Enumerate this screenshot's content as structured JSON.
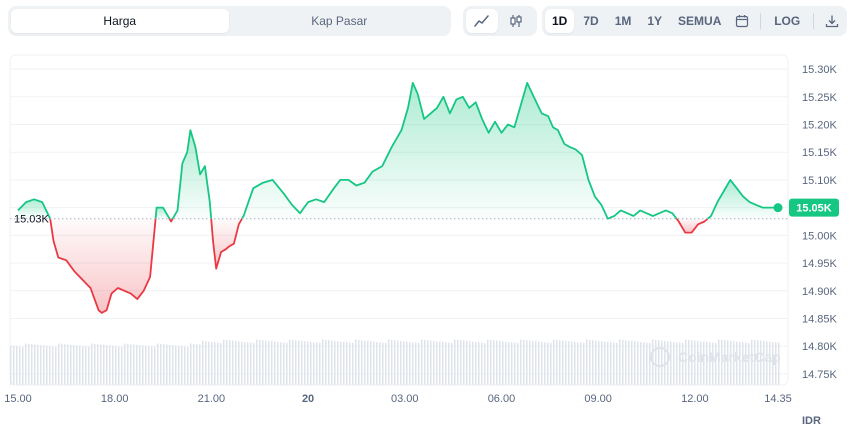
{
  "toolbar": {
    "tabs": [
      {
        "label": "Harga",
        "active": true
      },
      {
        "label": "Kap Pasar",
        "active": false
      }
    ],
    "chart_type_icons": [
      "line-chart-icon",
      "candlestick-icon"
    ],
    "ranges": [
      "1D",
      "7D",
      "1M",
      "1Y",
      "SEMUA"
    ],
    "active_range": "1D",
    "calendar_icon": "calendar-icon",
    "log_label": "LOG",
    "download_icon": "download-icon"
  },
  "colors": {
    "up": "#16c784",
    "down": "#ea3943",
    "grid": "#eff2f5",
    "axis_text": "#58667e"
  },
  "watermark": "CoinMarketCap",
  "chart_data": {
    "type": "line",
    "title": "",
    "ylabel": "",
    "currency_label": "IDR",
    "y_ticks": [
      "15.30K",
      "15.25K",
      "15.20K",
      "15.15K",
      "15.10K",
      "15.05K",
      "15.00K",
      "14.95K",
      "14.90K",
      "14.85K",
      "14.80K",
      "14.75K"
    ],
    "y_tick_values": [
      15300,
      15250,
      15200,
      15150,
      15100,
      15050,
      15000,
      14950,
      14900,
      14850,
      14800,
      14750
    ],
    "ylim": [
      14730,
      15320
    ],
    "x_ticks": [
      "15.00",
      "18.00",
      "21.00",
      "20",
      "03.00",
      "06.00",
      "09.00",
      "12.00",
      "14.35"
    ],
    "x_tick_hours": [
      0,
      3,
      6,
      9,
      12,
      15,
      18,
      21,
      23.58
    ],
    "xlim": [
      0,
      23.58
    ],
    "reference": {
      "value": 15030,
      "label": "15.03K"
    },
    "current": {
      "value": 15050,
      "label": "15.05K"
    },
    "series": [
      {
        "x": [
          0,
          0.25,
          0.5,
          0.75,
          1.0,
          1.1,
          1.25,
          1.5,
          1.75,
          2.0,
          2.25,
          2.5,
          2.6,
          2.75,
          2.9,
          3.1,
          3.3,
          3.5,
          3.7,
          3.9,
          4.1,
          4.3,
          4.5,
          4.75,
          4.95,
          5.1,
          5.25,
          5.35,
          5.5,
          5.65,
          5.8,
          5.95,
          6.05,
          6.15,
          6.3,
          6.45,
          6.55,
          6.7,
          6.85,
          7.0,
          7.15,
          7.3,
          7.6,
          7.9,
          8.25,
          8.5,
          8.75,
          9.0,
          9.25,
          9.5,
          9.8,
          10.0,
          10.25,
          10.5,
          10.75,
          11.0,
          11.3,
          11.6,
          11.9,
          12.1,
          12.25,
          12.4,
          12.6,
          12.8,
          13.0,
          13.2,
          13.4,
          13.6,
          13.8,
          14.0,
          14.2,
          14.4,
          14.6,
          14.8,
          15.0,
          15.2,
          15.4,
          15.6,
          15.8,
          16.0,
          16.25,
          16.45,
          16.6,
          16.75,
          16.95,
          17.1,
          17.3,
          17.5,
          17.7,
          17.9,
          18.1,
          18.3,
          18.5,
          18.7,
          18.9,
          19.1,
          19.3,
          19.5,
          19.7,
          19.9,
          20.1,
          20.3,
          20.5,
          20.7,
          20.9,
          21.1,
          21.3,
          21.5,
          21.7,
          21.9,
          22.1,
          22.3,
          22.5,
          22.7,
          22.9,
          23.1,
          23.3,
          23.45,
          23.58
        ],
        "y": [
          15045,
          15060,
          15065,
          15060,
          15030,
          14990,
          14960,
          14955,
          14935,
          14920,
          14905,
          14865,
          14860,
          14865,
          14895,
          14905,
          14900,
          14895,
          14885,
          14900,
          14925,
          15050,
          15050,
          15025,
          15045,
          15130,
          15150,
          15190,
          15160,
          15110,
          15125,
          15060,
          14990,
          14940,
          14970,
          14975,
          14980,
          14985,
          15020,
          15035,
          15060,
          15085,
          15095,
          15100,
          15075,
          15055,
          15040,
          15060,
          15065,
          15060,
          15085,
          15100,
          15100,
          15090,
          15095,
          15115,
          15125,
          15160,
          15190,
          15230,
          15275,
          15255,
          15210,
          15220,
          15230,
          15250,
          15220,
          15245,
          15250,
          15230,
          15240,
          15210,
          15185,
          15205,
          15185,
          15200,
          15195,
          15235,
          15275,
          15250,
          15220,
          15215,
          15195,
          15190,
          15165,
          15160,
          15155,
          15145,
          15100,
          15070,
          15055,
          15030,
          15035,
          15045,
          15040,
          15035,
          15045,
          15040,
          15035,
          15040,
          15045,
          15040,
          15025,
          15005,
          15005,
          15020,
          15025,
          15035,
          15060,
          15080,
          15100,
          15085,
          15070,
          15060,
          15055,
          15050,
          15050,
          15050,
          15050
        ]
      }
    ],
    "volume_note": "volume bars at bottom",
    "legend": "none",
    "grid": true
  }
}
